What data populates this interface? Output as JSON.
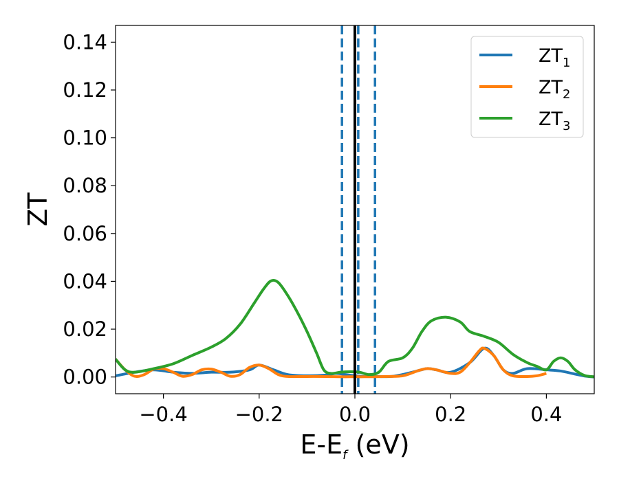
{
  "chart_data": {
    "type": "line",
    "title": "",
    "xlabel": {
      "main": "E-E",
      "sub": "f",
      "unit": " (eV)"
    },
    "ylabel": "ZT",
    "xlim": [
      -0.5,
      0.5
    ],
    "ylim": [
      -0.007,
      0.147
    ],
    "x_ticks": [
      -0.4,
      -0.2,
      0.0,
      0.2,
      0.4
    ],
    "x_tick_labels": [
      "−0.4",
      "−0.2",
      "0.0",
      "0.2",
      "0.4"
    ],
    "y_ticks": [
      0.0,
      0.02,
      0.04,
      0.06,
      0.08,
      0.1,
      0.12,
      0.14
    ],
    "y_tick_labels": [
      "0.00",
      "0.02",
      "0.04",
      "0.06",
      "0.08",
      "0.10",
      "0.12",
      "0.14"
    ],
    "grid": false,
    "legend_position": "top-right",
    "vlines": [
      {
        "x": 0.0,
        "style": "solid",
        "color": "#000000"
      },
      {
        "x": -0.027,
        "style": "dashed",
        "color": "#1f77b4"
      },
      {
        "x": 0.007,
        "style": "dashed",
        "color": "#1f77b4"
      },
      {
        "x": 0.042,
        "style": "dashed",
        "color": "#1f77b4"
      }
    ],
    "series": [
      {
        "name": "ZT",
        "name_sub": "1",
        "color": "#1f77b4",
        "points": [
          [
            -0.5,
            0.0005
          ],
          [
            -0.46,
            0.002
          ],
          [
            -0.42,
            0.003
          ],
          [
            -0.38,
            0.002
          ],
          [
            -0.34,
            0.0015
          ],
          [
            -0.3,
            0.002
          ],
          [
            -0.26,
            0.002
          ],
          [
            -0.22,
            0.003
          ],
          [
            -0.2,
            0.005
          ],
          [
            -0.17,
            0.003
          ],
          [
            -0.14,
            0.001
          ],
          [
            -0.1,
            0.0005
          ],
          [
            -0.06,
            0.0008
          ],
          [
            -0.04,
            0.0015
          ],
          [
            -0.02,
            0.001
          ],
          [
            0.0,
            0.0005
          ],
          [
            0.02,
            0.0002
          ],
          [
            0.04,
            0.0002
          ],
          [
            0.08,
            0.0003
          ],
          [
            0.12,
            0.002
          ],
          [
            0.15,
            0.0035
          ],
          [
            0.17,
            0.003
          ],
          [
            0.2,
            0.002
          ],
          [
            0.24,
            0.006
          ],
          [
            0.27,
            0.012
          ],
          [
            0.29,
            0.009
          ],
          [
            0.31,
            0.003
          ],
          [
            0.33,
            0.0015
          ],
          [
            0.36,
            0.0035
          ],
          [
            0.4,
            0.003
          ],
          [
            0.43,
            0.0025
          ],
          [
            0.46,
            0.0012
          ],
          [
            0.48,
            0.0004
          ],
          [
            0.5,
            0.0
          ]
        ]
      },
      {
        "name": "ZT",
        "name_sub": "2",
        "color": "#ff7f0e",
        "points": [
          [
            -0.5,
            0.0075
          ],
          [
            -0.48,
            0.003
          ],
          [
            -0.46,
            0.0003
          ],
          [
            -0.44,
            0.001
          ],
          [
            -0.42,
            0.0033
          ],
          [
            -0.4,
            0.0035
          ],
          [
            -0.38,
            0.002
          ],
          [
            -0.36,
            0.0003
          ],
          [
            -0.34,
            0.001
          ],
          [
            -0.32,
            0.003
          ],
          [
            -0.3,
            0.0033
          ],
          [
            -0.28,
            0.002
          ],
          [
            -0.26,
            0.0003
          ],
          [
            -0.24,
            0.001
          ],
          [
            -0.22,
            0.004
          ],
          [
            -0.2,
            0.005
          ],
          [
            -0.18,
            0.0035
          ],
          [
            -0.16,
            0.001
          ],
          [
            -0.14,
            0.0002
          ],
          [
            -0.1,
            0.0002
          ],
          [
            -0.06,
            0.0002
          ],
          [
            -0.03,
            0.0001
          ],
          [
            0.0,
            0.0001
          ],
          [
            0.02,
            0.0001
          ],
          [
            0.06,
            0.0002
          ],
          [
            0.1,
            0.0005
          ],
          [
            0.13,
            0.0025
          ],
          [
            0.15,
            0.0035
          ],
          [
            0.17,
            0.003
          ],
          [
            0.2,
            0.0015
          ],
          [
            0.22,
            0.002
          ],
          [
            0.24,
            0.006
          ],
          [
            0.26,
            0.011
          ],
          [
            0.27,
            0.012
          ],
          [
            0.29,
            0.009
          ],
          [
            0.31,
            0.003
          ],
          [
            0.33,
            0.0005
          ],
          [
            0.36,
            0.0002
          ],
          [
            0.38,
            0.0005
          ],
          [
            0.4,
            0.0015
          ]
        ]
      },
      {
        "name": "ZT",
        "name_sub": "3",
        "color": "#2ca02c",
        "points": [
          [
            -0.5,
            0.0075
          ],
          [
            -0.48,
            0.003
          ],
          [
            -0.46,
            0.002
          ],
          [
            -0.42,
            0.0035
          ],
          [
            -0.38,
            0.0055
          ],
          [
            -0.34,
            0.009
          ],
          [
            -0.3,
            0.0125
          ],
          [
            -0.27,
            0.016
          ],
          [
            -0.24,
            0.022
          ],
          [
            -0.21,
            0.031
          ],
          [
            -0.19,
            0.037
          ],
          [
            -0.175,
            0.0402
          ],
          [
            -0.16,
            0.0395
          ],
          [
            -0.14,
            0.034
          ],
          [
            -0.12,
            0.027
          ],
          [
            -0.1,
            0.019
          ],
          [
            -0.08,
            0.01
          ],
          [
            -0.065,
            0.003
          ],
          [
            -0.05,
            0.0015
          ],
          [
            -0.03,
            0.002
          ],
          [
            -0.01,
            0.0022
          ],
          [
            0.01,
            0.002
          ],
          [
            0.03,
            0.001
          ],
          [
            0.05,
            0.002
          ],
          [
            0.07,
            0.0065
          ],
          [
            0.1,
            0.008
          ],
          [
            0.12,
            0.012
          ],
          [
            0.14,
            0.019
          ],
          [
            0.16,
            0.0235
          ],
          [
            0.19,
            0.025
          ],
          [
            0.22,
            0.023
          ],
          [
            0.24,
            0.019
          ],
          [
            0.27,
            0.017
          ],
          [
            0.3,
            0.0145
          ],
          [
            0.33,
            0.0095
          ],
          [
            0.36,
            0.006
          ],
          [
            0.38,
            0.0045
          ],
          [
            0.4,
            0.003
          ],
          [
            0.415,
            0.0065
          ],
          [
            0.43,
            0.008
          ],
          [
            0.445,
            0.0065
          ],
          [
            0.46,
            0.003
          ],
          [
            0.48,
            0.0006
          ],
          [
            0.5,
            0.0001
          ]
        ]
      }
    ]
  }
}
